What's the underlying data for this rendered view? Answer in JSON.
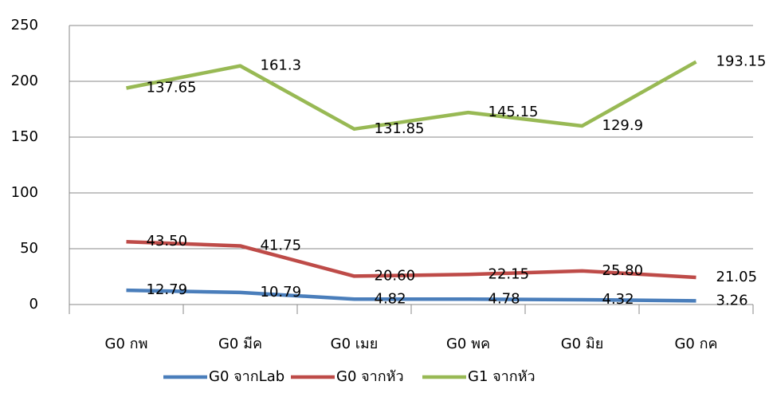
{
  "chart_data": {
    "type": "line",
    "stacked": true,
    "categories": [
      "G0 กพ",
      "G0 มีค",
      "G0 เมย",
      "G0 พค",
      "G0 มิย",
      "G0 กค"
    ],
    "series": [
      {
        "name": "G0 จากLab",
        "color": "#4a7ebb",
        "values": [
          12.79,
          10.79,
          4.82,
          4.78,
          4.32,
          3.26
        ]
      },
      {
        "name": "G0 จากหัว",
        "color": "#be4b48",
        "values": [
          43.5,
          41.75,
          20.6,
          22.15,
          25.8,
          21.05
        ],
        "value_labels": [
          "43.50",
          "41.75",
          "20.60",
          "22.15",
          "25.80",
          "21.05"
        ]
      },
      {
        "name": "G1 จากหัว",
        "color": "#98b954",
        "values": [
          137.65,
          161.3,
          131.85,
          145.15,
          129.9,
          193.15
        ]
      }
    ],
    "ylim": [
      0,
      250
    ],
    "yticks": [
      0,
      50,
      100,
      150,
      200,
      250
    ],
    "grid": true,
    "legend": "bottom"
  }
}
